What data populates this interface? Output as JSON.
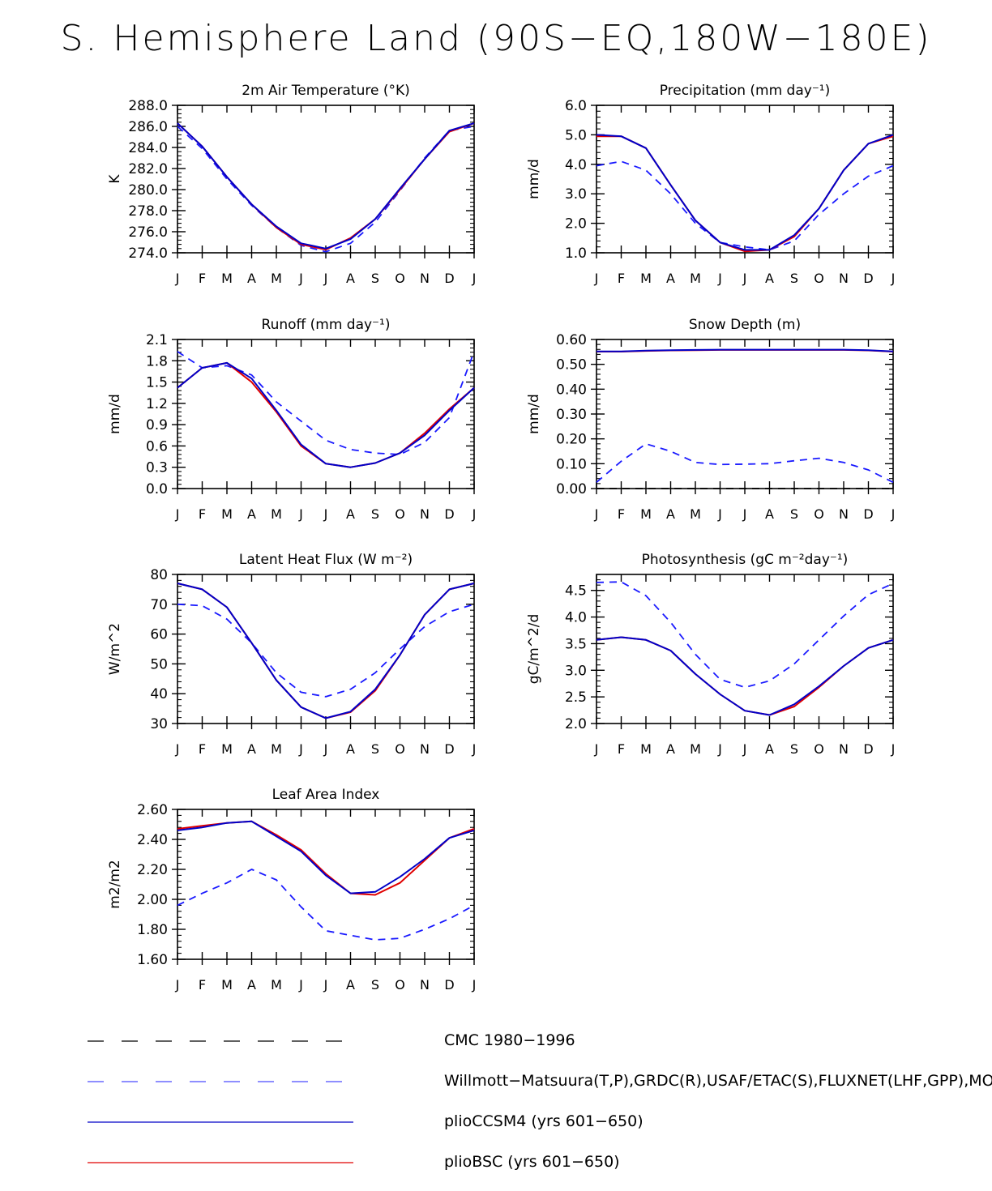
{
  "title": "S. Hemisphere Land (90S−EQ,180W−180E)",
  "colors": {
    "cmc": "#000000",
    "obs": "#1a1aff",
    "ccsm4": "#0000c8",
    "bsc": "#e00000"
  },
  "chart_data": [
    {
      "type": "line",
      "title": "2m Air Temperature (°K)",
      "ylabel": "K",
      "categories": [
        "J",
        "F",
        "M",
        "A",
        "M",
        "J",
        "J",
        "A",
        "S",
        "O",
        "N",
        "D",
        "J"
      ],
      "ylim": [
        274.0,
        288.0
      ],
      "yticks": [
        "288.0",
        "286.0",
        "284.0",
        "282.0",
        "280.0",
        "278.0",
        "276.0",
        "274.0"
      ],
      "series": [
        {
          "name": "obs",
          "values": [
            286.0,
            283.9,
            281.0,
            278.5,
            276.4,
            274.7,
            274.1,
            274.9,
            276.9,
            279.9,
            283.0,
            285.6,
            286.0
          ]
        },
        {
          "name": "plioCCSM4",
          "values": [
            286.3,
            284.1,
            281.2,
            278.6,
            276.5,
            274.9,
            274.4,
            275.3,
            277.2,
            280.1,
            282.9,
            285.6,
            286.3
          ]
        },
        {
          "name": "plioBSC",
          "values": [
            286.3,
            284.1,
            281.2,
            278.6,
            276.4,
            274.8,
            274.3,
            275.4,
            277.2,
            280.0,
            282.9,
            285.5,
            286.3
          ]
        }
      ]
    },
    {
      "type": "line",
      "title": "Precipitation (mm day⁻¹)",
      "ylabel": "mm/d",
      "categories": [
        "J",
        "F",
        "M",
        "A",
        "M",
        "J",
        "J",
        "A",
        "S",
        "O",
        "N",
        "D",
        "J"
      ],
      "ylim": [
        1.0,
        6.0
      ],
      "yticks": [
        "6.0",
        "5.0",
        "4.0",
        "3.0",
        "2.0",
        "1.0"
      ],
      "series": [
        {
          "name": "obs",
          "values": [
            3.95,
            4.1,
            3.8,
            3.0,
            2.0,
            1.35,
            1.2,
            1.1,
            1.4,
            2.3,
            3.0,
            3.6,
            3.95
          ]
        },
        {
          "name": "plioCCSM4",
          "values": [
            5.0,
            4.95,
            4.55,
            3.3,
            2.1,
            1.35,
            1.1,
            1.1,
            1.6,
            2.5,
            3.8,
            4.7,
            5.0
          ]
        },
        {
          "name": "plioBSC",
          "values": [
            4.95,
            4.95,
            4.55,
            3.3,
            2.1,
            1.35,
            1.05,
            1.1,
            1.55,
            2.5,
            3.8,
            4.7,
            4.95
          ]
        }
      ]
    },
    {
      "type": "line",
      "title": "Runoff (mm day⁻¹)",
      "ylabel": "mm/d",
      "categories": [
        "J",
        "F",
        "M",
        "A",
        "M",
        "J",
        "J",
        "A",
        "S",
        "O",
        "N",
        "D",
        "J"
      ],
      "ylim": [
        0.0,
        2.1
      ],
      "yticks": [
        "2.1",
        "1.8",
        "1.5",
        "1.2",
        "0.9",
        "0.6",
        "0.3",
        "0.0"
      ],
      "series": [
        {
          "name": "obs",
          "values": [
            1.93,
            1.7,
            1.73,
            1.6,
            1.22,
            0.95,
            0.68,
            0.55,
            0.5,
            0.48,
            0.65,
            1.0,
            1.93
          ]
        },
        {
          "name": "plioCCSM4",
          "values": [
            1.42,
            1.7,
            1.77,
            1.55,
            1.1,
            0.62,
            0.35,
            0.3,
            0.36,
            0.5,
            0.75,
            1.1,
            1.42
          ]
        },
        {
          "name": "plioBSC",
          "values": [
            1.42,
            1.7,
            1.77,
            1.5,
            1.08,
            0.6,
            0.35,
            0.3,
            0.36,
            0.5,
            0.78,
            1.12,
            1.42
          ]
        }
      ]
    },
    {
      "type": "line",
      "title": "Snow Depth (m)",
      "ylabel": "mm/d",
      "categories": [
        "J",
        "F",
        "M",
        "A",
        "M",
        "J",
        "J",
        "A",
        "S",
        "O",
        "N",
        "D",
        "J"
      ],
      "ylim": [
        0.0,
        0.6
      ],
      "yticks": [
        "0.60",
        "0.50",
        "0.40",
        "0.30",
        "0.20",
        "0.10",
        "0.00"
      ],
      "series": [
        {
          "name": "CMC",
          "values": [
            0,
            0,
            0,
            0,
            0,
            0,
            0,
            0,
            0,
            0,
            0,
            0,
            0
          ]
        },
        {
          "name": "obs",
          "values": [
            0.025,
            0.11,
            0.18,
            0.15,
            0.105,
            0.097,
            0.098,
            0.1,
            0.112,
            0.122,
            0.105,
            0.075,
            0.025
          ]
        },
        {
          "name": "plioCCSM4",
          "values": [
            0.552,
            0.552,
            0.555,
            0.557,
            0.558,
            0.559,
            0.559,
            0.559,
            0.559,
            0.559,
            0.559,
            0.557,
            0.552
          ]
        },
        {
          "name": "plioBSC",
          "values": [
            0.551,
            0.551,
            0.554,
            0.556,
            0.557,
            0.558,
            0.558,
            0.558,
            0.558,
            0.558,
            0.558,
            0.556,
            0.551
          ]
        }
      ]
    },
    {
      "type": "line",
      "title": "Latent Heat Flux (W m⁻²)",
      "ylabel": "W/m^2",
      "categories": [
        "J",
        "F",
        "M",
        "A",
        "M",
        "J",
        "J",
        "A",
        "S",
        "O",
        "N",
        "D",
        "J"
      ],
      "ylim": [
        30,
        80
      ],
      "yticks": [
        "80",
        "70",
        "60",
        "50",
        "40",
        "30"
      ],
      "series": [
        {
          "name": "obs",
          "values": [
            70,
            69.5,
            65,
            57,
            47,
            40.5,
            39,
            41.5,
            47,
            55,
            62.5,
            67.5,
            70
          ]
        },
        {
          "name": "plioCCSM4",
          "values": [
            77,
            75,
            69,
            57,
            44.5,
            35.5,
            31.8,
            34,
            41.5,
            53,
            66.5,
            75,
            77
          ]
        },
        {
          "name": "plioBSC",
          "values": [
            77,
            75,
            69,
            57,
            44.5,
            35.5,
            31.8,
            33.8,
            41,
            53,
            66.5,
            75,
            77
          ]
        }
      ]
    },
    {
      "type": "line",
      "title": "Photosynthesis (gC m⁻²day⁻¹)",
      "ylabel": "gC/m^2/d",
      "categories": [
        "J",
        "F",
        "M",
        "A",
        "M",
        "J",
        "J",
        "A",
        "S",
        "O",
        "N",
        "D",
        "J"
      ],
      "ylim": [
        2.0,
        4.8
      ],
      "yticks": [
        "4.5",
        "4.0",
        "3.5",
        "3.0",
        "2.5",
        "2.0"
      ],
      "series": [
        {
          "name": "obs",
          "values": [
            4.65,
            4.66,
            4.4,
            3.9,
            3.3,
            2.83,
            2.68,
            2.8,
            3.12,
            3.57,
            4.02,
            4.42,
            4.63
          ]
        },
        {
          "name": "plioCCSM4",
          "values": [
            3.57,
            3.62,
            3.57,
            3.37,
            2.93,
            2.55,
            2.24,
            2.16,
            2.36,
            2.7,
            3.08,
            3.42,
            3.57
          ]
        },
        {
          "name": "plioBSC",
          "values": [
            3.57,
            3.62,
            3.57,
            3.37,
            2.93,
            2.55,
            2.24,
            2.16,
            2.32,
            2.68,
            3.08,
            3.42,
            3.57
          ]
        }
      ]
    },
    {
      "type": "line",
      "title": "Leaf Area Index",
      "ylabel": "m2/m2",
      "categories": [
        "J",
        "F",
        "M",
        "A",
        "M",
        "J",
        "J",
        "A",
        "S",
        "O",
        "N",
        "D",
        "J"
      ],
      "ylim": [
        1.6,
        2.6
      ],
      "yticks": [
        "2.60",
        "2.40",
        "2.20",
        "2.00",
        "1.80",
        "1.60"
      ],
      "series": [
        {
          "name": "obs",
          "values": [
            1.96,
            2.04,
            2.11,
            2.2,
            2.13,
            1.95,
            1.79,
            1.76,
            1.73,
            1.74,
            1.8,
            1.87,
            1.96
          ]
        },
        {
          "name": "plioCCSM4",
          "values": [
            2.46,
            2.48,
            2.51,
            2.52,
            2.42,
            2.32,
            2.16,
            2.04,
            2.05,
            2.15,
            2.27,
            2.41,
            2.46
          ]
        },
        {
          "name": "plioBSC",
          "values": [
            2.47,
            2.49,
            2.51,
            2.52,
            2.43,
            2.33,
            2.17,
            2.04,
            2.03,
            2.11,
            2.26,
            2.41,
            2.47
          ]
        }
      ]
    }
  ],
  "legend": [
    {
      "key": "cmc",
      "label": "CMC 1980−1996",
      "style": "dash-long",
      "color": "#000000"
    },
    {
      "key": "obs",
      "label": "Willmott−Matsuura(T,P),GRDC(R),USAF/ETAC(S),FLUXNET(LHF,GPP),MODIS(LAI)",
      "style": "dash-long",
      "color": "#4a4aff"
    },
    {
      "key": "ccsm4",
      "label": "plioCCSM4 (yrs 601−650)",
      "style": "solid",
      "color": "#0000c8"
    },
    {
      "key": "bsc",
      "label": "plioBSC (yrs 601−650)",
      "style": "solid",
      "color": "#e00000"
    }
  ]
}
